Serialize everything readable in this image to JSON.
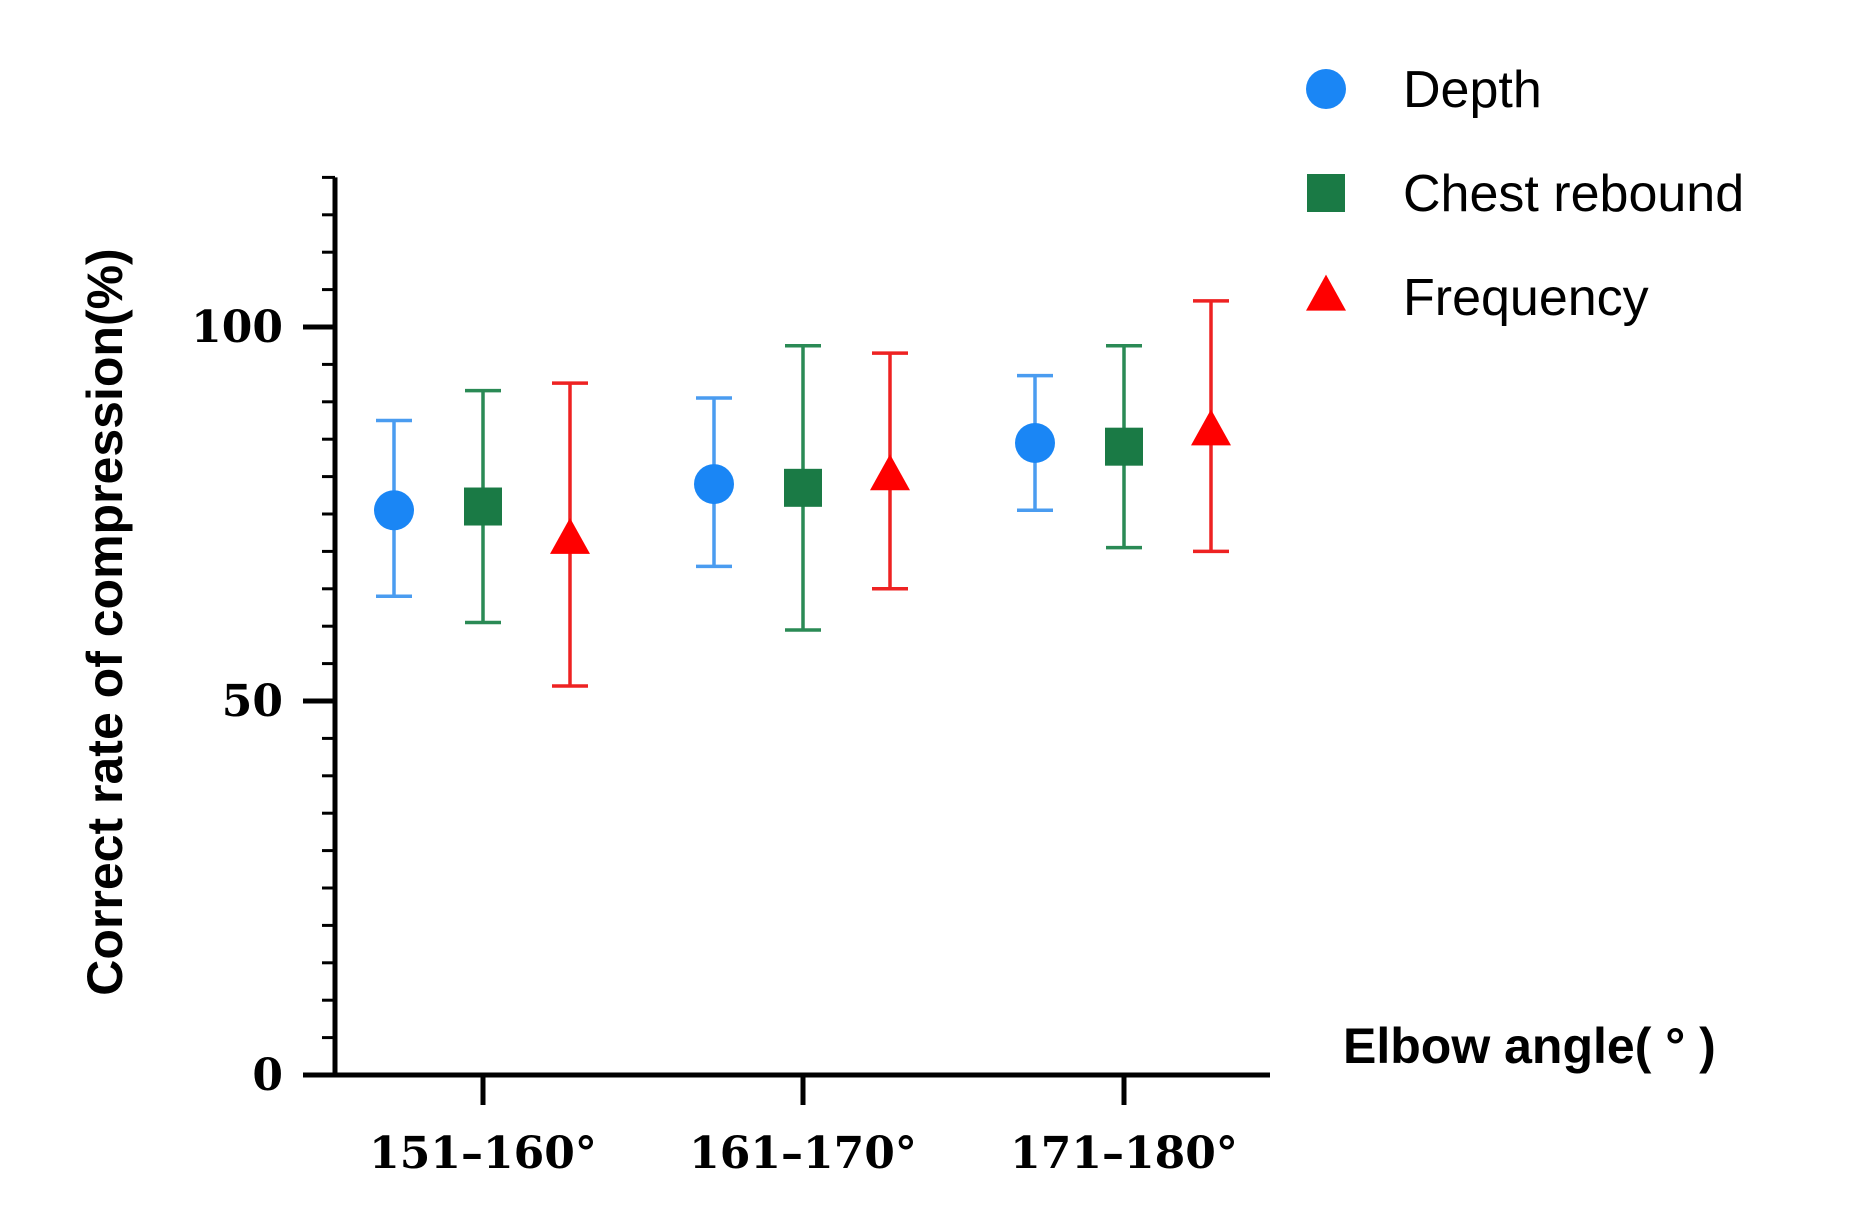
{
  "chart_data": {
    "type": "scatter",
    "subtype": "mean-with-error-bars",
    "title": "",
    "xlabel": "Elbow angle( ° )",
    "ylabel": "Correct rate of compression(%)",
    "categories": [
      "151–160°",
      "161–170°",
      "171–180°"
    ],
    "ylim": [
      0,
      120
    ],
    "yticks": [
      0,
      50,
      100
    ],
    "ytick_labels": [
      "0",
      "50",
      "100"
    ],
    "minor_tick_step": 5,
    "grid": false,
    "legend_position": "top-right",
    "series": [
      {
        "name": "Depth",
        "marker": "circle",
        "color": "#1a86f5",
        "errorbar_color": "#4a9cf0",
        "values": [
          75.5,
          79,
          84.5
        ],
        "upper": [
          87.5,
          90.5,
          93.5
        ],
        "lower": [
          64,
          68,
          75.5
        ]
      },
      {
        "name": "Chest rebound",
        "marker": "square",
        "color": "#1a7a45",
        "errorbar_color": "#2a8a55",
        "values": [
          76,
          78.5,
          84
        ],
        "upper": [
          91.5,
          97.5,
          97.5
        ],
        "lower": [
          60.5,
          59.5,
          70.5
        ]
      },
      {
        "name": "Frequency",
        "marker": "triangle",
        "color": "#ff0000",
        "errorbar_color": "#ee2222",
        "values": [
          71.5,
          80,
          86
        ],
        "upper": [
          92.5,
          96.5,
          103.5
        ],
        "lower": [
          52,
          65,
          70
        ]
      }
    ]
  }
}
